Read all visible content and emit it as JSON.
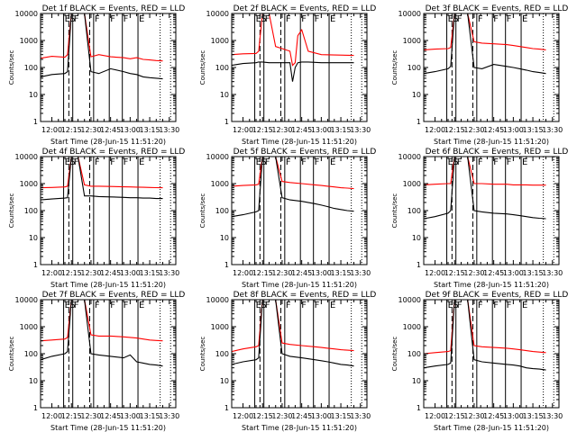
{
  "chart_data": [
    {
      "type": "line",
      "title": "Det 1f BLACK = Events, RED = LLD",
      "xlabel": "Start Time (28-Jun-15 11:51:20)",
      "ylabel": "Counts/sec",
      "ylim": [
        1,
        10000
      ],
      "y_scale": "log",
      "x_ticks": [
        "12:00",
        "12:15",
        "12:30",
        "12:45",
        "13:00",
        "13:15",
        "13:30"
      ],
      "y_ticks": [
        "1",
        "10",
        "100",
        "1000",
        "10000"
      ],
      "x": [
        "11:51:20",
        "12:00",
        "12:10",
        "12:12",
        "12:15",
        "12:20",
        "12:25",
        "12:30",
        "12:36",
        "12:45",
        "12:55",
        "13:00",
        "13:05",
        "13:10",
        "13:15",
        "13:20",
        "13:25"
      ],
      "series": [
        {
          "color": "#ff0000",
          "values": [
            220,
            260,
            240,
            300,
            10000,
            10000,
            10000,
            250,
            300,
            250,
            230,
            210,
            230,
            200,
            190,
            180,
            175
          ]
        },
        {
          "color": "#000000",
          "values": [
            45,
            55,
            60,
            70,
            10000,
            10000,
            10000,
            70,
            60,
            90,
            70,
            60,
            55,
            45,
            42,
            40,
            38
          ]
        }
      ],
      "markers": {
        "solid": [
          "12:09",
          "12:16",
          "12:32",
          "12:44",
          "12:54",
          "13:06"
        ],
        "dashed": [
          "12:13",
          "12:29"
        ],
        "dotted": [
          "13:23",
          "13:31"
        ]
      },
      "labels": [
        "E",
        "F",
        "S",
        "F",
        "F",
        "F",
        "E"
      ]
    },
    {
      "type": "line",
      "title": "Det 2f BLACK = Events, RED = LLD",
      "xlabel": "Start Time (28-Jun-15 11:51:20)",
      "ylabel": "Counts/sec",
      "ylim": [
        1,
        10000
      ],
      "y_scale": "log",
      "x_ticks": [
        "12:00",
        "12:15",
        "12:30",
        "12:45",
        "13:00",
        "13:15",
        "13:30"
      ],
      "y_ticks": [
        "1",
        "10",
        "100",
        "1000",
        "10000"
      ],
      "x": [
        "11:51:20",
        "12:00",
        "12:10",
        "12:12",
        "12:15",
        "12:20",
        "12:25",
        "12:30",
        "12:36",
        "12:38",
        "12:40",
        "12:42",
        "12:45",
        "12:50",
        "13:00",
        "13:10",
        "13:25"
      ],
      "series": [
        {
          "color": "#ff0000",
          "values": [
            300,
            320,
            330,
            400,
            10000,
            10000,
            600,
            500,
            400,
            120,
            150,
            1500,
            2500,
            400,
            300,
            290,
            280
          ]
        },
        {
          "color": "#000000",
          "values": [
            120,
            140,
            150,
            160,
            160,
            150,
            150,
            150,
            150,
            30,
            100,
            150,
            160,
            160,
            150,
            150,
            150
          ]
        }
      ],
      "markers": {
        "solid": [
          "12:09",
          "12:16",
          "12:32",
          "12:44",
          "12:54",
          "13:06"
        ],
        "dashed": [
          "12:13",
          "12:29"
        ],
        "dotted": [
          "13:23",
          "13:31"
        ]
      },
      "labels": [
        "E",
        "F",
        "S",
        "F",
        "F",
        "F",
        "E"
      ]
    },
    {
      "type": "line",
      "title": "Det 3f BLACK = Events, RED = LLD",
      "xlabel": "Start Time (28-Jun-15 11:51:20)",
      "ylabel": "Counts/sec",
      "ylim": [
        1,
        10000
      ],
      "y_scale": "log",
      "x_ticks": [
        "12:00",
        "12:15",
        "12:30",
        "12:45",
        "13:00",
        "13:15",
        "13:30"
      ],
      "y_ticks": [
        "1",
        "10",
        "100",
        "1000",
        "10000"
      ],
      "x": [
        "11:51:20",
        "12:00",
        "12:10",
        "12:12",
        "12:15",
        "12:20",
        "12:25",
        "12:30",
        "12:36",
        "12:45",
        "12:55",
        "13:00",
        "13:05",
        "13:10",
        "13:15",
        "13:20",
        "13:25"
      ],
      "series": [
        {
          "color": "#ff0000",
          "values": [
            450,
            480,
            500,
            550,
            10000,
            10000,
            10000,
            900,
            800,
            750,
            700,
            650,
            600,
            550,
            500,
            480,
            450
          ]
        },
        {
          "color": "#000000",
          "values": [
            60,
            70,
            90,
            110,
            10000,
            10000,
            10000,
            100,
            90,
            130,
            110,
            100,
            90,
            80,
            70,
            65,
            60
          ]
        }
      ],
      "markers": {
        "solid": [
          "12:09",
          "12:16",
          "12:32",
          "12:44",
          "12:54",
          "13:06"
        ],
        "dashed": [
          "12:13",
          "12:29"
        ],
        "dotted": [
          "13:23",
          "13:31"
        ]
      },
      "labels": [
        "E",
        "F",
        "S",
        "F",
        "F",
        "F",
        "E"
      ]
    },
    {
      "type": "line",
      "title": "Det 4f BLACK = Events, RED = LLD",
      "xlabel": "Start Time (28-Jun-15 11:51:20)",
      "ylabel": "Counts/sec",
      "ylim": [
        1,
        10000
      ],
      "y_scale": "log",
      "x_ticks": [
        "12:00",
        "12:15",
        "12:30",
        "12:45",
        "13:00",
        "13:15",
        "13:30"
      ],
      "y_ticks": [
        "1",
        "10",
        "100",
        "1000",
        "10000"
      ],
      "x": [
        "11:51:20",
        "12:00",
        "12:10",
        "12:12",
        "12:15",
        "12:20",
        "12:25",
        "12:30",
        "12:36",
        "12:45",
        "12:55",
        "13:00",
        "13:05",
        "13:10",
        "13:15",
        "13:20",
        "13:25"
      ],
      "series": [
        {
          "color": "#ff0000",
          "values": [
            700,
            720,
            750,
            800,
            10000,
            10000,
            900,
            800,
            800,
            780,
            760,
            750,
            740,
            730,
            720,
            710,
            700
          ]
        },
        {
          "color": "#000000",
          "values": [
            250,
            270,
            290,
            300,
            10000,
            10000,
            350,
            350,
            330,
            320,
            310,
            300,
            300,
            290,
            290,
            280,
            280
          ]
        }
      ],
      "markers": {
        "solid": [
          "12:09",
          "12:16",
          "12:32",
          "12:44",
          "12:54",
          "13:06"
        ],
        "dashed": [
          "12:13",
          "12:29"
        ],
        "dotted": [
          "13:23",
          "13:31"
        ]
      },
      "labels": [
        "E",
        "F",
        "S",
        "F",
        "F",
        "F",
        "E"
      ]
    },
    {
      "type": "line",
      "title": "Det 5f BLACK = Events, RED = LLD",
      "xlabel": "Start Time (28-Jun-15 11:51:20)",
      "ylabel": "Counts/sec",
      "ylim": [
        1,
        10000
      ],
      "y_scale": "log",
      "x_ticks": [
        "12:00",
        "12:15",
        "12:30",
        "12:45",
        "13:00",
        "13:15",
        "13:30"
      ],
      "y_ticks": [
        "1",
        "10",
        "100",
        "1000",
        "10000"
      ],
      "x": [
        "11:51:20",
        "12:00",
        "12:10",
        "12:12",
        "12:15",
        "12:20",
        "12:25",
        "12:30",
        "12:36",
        "12:45",
        "12:55",
        "13:00",
        "13:05",
        "13:10",
        "13:15",
        "13:20",
        "13:25"
      ],
      "series": [
        {
          "color": "#ff0000",
          "values": [
            800,
            850,
            900,
            950,
            10000,
            10000,
            10000,
            1200,
            1100,
            1000,
            900,
            850,
            800,
            750,
            700,
            680,
            650
          ]
        },
        {
          "color": "#000000",
          "values": [
            60,
            70,
            90,
            100,
            10000,
            10000,
            10000,
            300,
            250,
            220,
            180,
            160,
            140,
            120,
            110,
            100,
            95
          ]
        }
      ],
      "markers": {
        "solid": [
          "12:09",
          "12:16",
          "12:32",
          "12:44",
          "12:54",
          "13:06"
        ],
        "dashed": [
          "12:13",
          "12:29"
        ],
        "dotted": [
          "13:23",
          "13:31"
        ]
      },
      "labels": [
        "E",
        "F",
        "S",
        "F",
        "F",
        "F",
        "E"
      ]
    },
    {
      "type": "line",
      "title": "Det 6f BLACK = Events, RED = LLD",
      "xlabel": "Start Time (28-Jun-15 11:51:20)",
      "ylabel": "Counts/sec",
      "ylim": [
        1,
        10000
      ],
      "y_scale": "log",
      "x_ticks": [
        "12:00",
        "12:15",
        "12:30",
        "12:45",
        "13:00",
        "13:15",
        "13:30"
      ],
      "y_ticks": [
        "1",
        "10",
        "100",
        "1000",
        "10000"
      ],
      "x": [
        "11:51:20",
        "12:00",
        "12:10",
        "12:12",
        "12:15",
        "12:20",
        "12:25",
        "12:30",
        "12:36",
        "12:45",
        "12:55",
        "13:00",
        "13:05",
        "13:10",
        "13:15",
        "13:20",
        "13:25"
      ],
      "series": [
        {
          "color": "#ff0000",
          "values": [
            900,
            950,
            1000,
            1000,
            10000,
            10000,
            10000,
            1000,
            1000,
            950,
            950,
            900,
            900,
            900,
            880,
            880,
            880
          ]
        },
        {
          "color": "#000000",
          "values": [
            50,
            60,
            80,
            100,
            10000,
            10000,
            10000,
            100,
            90,
            80,
            75,
            70,
            65,
            60,
            55,
            52,
            50
          ]
        }
      ],
      "markers": {
        "solid": [
          "12:09",
          "12:16",
          "12:32",
          "12:44",
          "12:54",
          "13:06"
        ],
        "dashed": [
          "12:13",
          "12:29"
        ],
        "dotted": [
          "13:23",
          "13:31"
        ]
      },
      "labels": [
        "E",
        "F",
        "S",
        "F",
        "F",
        "F",
        "E"
      ]
    },
    {
      "type": "line",
      "title": "Det 7f BLACK = Events, RED = LLD",
      "xlabel": "Start Time (28-Jun-15 11:51:20)",
      "ylabel": "Counts/sec",
      "ylim": [
        1,
        10000
      ],
      "y_scale": "log",
      "x_ticks": [
        "12:00",
        "12:15",
        "12:30",
        "12:45",
        "13:00",
        "13:15",
        "13:30"
      ],
      "y_ticks": [
        "1",
        "10",
        "100",
        "1000",
        "10000"
      ],
      "x": [
        "11:51:20",
        "12:00",
        "12:10",
        "12:12",
        "12:15",
        "12:20",
        "12:25",
        "12:30",
        "12:36",
        "12:45",
        "12:55",
        "13:00",
        "13:05",
        "13:10",
        "13:15",
        "13:20",
        "13:25"
      ],
      "series": [
        {
          "color": "#ff0000",
          "values": [
            300,
            320,
            350,
            400,
            10000,
            10000,
            10000,
            500,
            450,
            450,
            420,
            400,
            380,
            350,
            320,
            310,
            300
          ]
        },
        {
          "color": "#000000",
          "values": [
            60,
            80,
            100,
            120,
            10000,
            10000,
            10000,
            100,
            90,
            80,
            70,
            90,
            50,
            45,
            40,
            38,
            35
          ]
        }
      ],
      "markers": {
        "solid": [
          "12:09",
          "12:16",
          "12:32",
          "12:44",
          "12:54",
          "13:06"
        ],
        "dashed": [
          "12:13",
          "12:29"
        ],
        "dotted": [
          "13:23",
          "13:31"
        ]
      },
      "labels": [
        "E",
        "F",
        "S",
        "F",
        "F",
        "F",
        "E"
      ]
    },
    {
      "type": "line",
      "title": "Det 8f BLACK = Events, RED = LLD",
      "xlabel": "Start Time (28-Jun-15 11:51:20)",
      "ylabel": "Counts/sec",
      "ylim": [
        1,
        10000
      ],
      "y_scale": "log",
      "x_ticks": [
        "12:00",
        "12:15",
        "12:30",
        "12:45",
        "13:00",
        "13:15",
        "13:30"
      ],
      "y_ticks": [
        "1",
        "10",
        "100",
        "1000",
        "10000"
      ],
      "x": [
        "11:51:20",
        "12:00",
        "12:10",
        "12:12",
        "12:15",
        "12:20",
        "12:25",
        "12:30",
        "12:36",
        "12:45",
        "12:55",
        "13:00",
        "13:05",
        "13:10",
        "13:15",
        "13:20",
        "13:25"
      ],
      "series": [
        {
          "color": "#ff0000",
          "values": [
            120,
            150,
            180,
            200,
            10000,
            10000,
            10000,
            250,
            220,
            200,
            180,
            170,
            160,
            150,
            140,
            135,
            130
          ]
        },
        {
          "color": "#000000",
          "values": [
            40,
            50,
            60,
            70,
            10000,
            10000,
            10000,
            100,
            80,
            70,
            60,
            55,
            50,
            45,
            40,
            38,
            35
          ]
        }
      ],
      "markers": {
        "solid": [
          "12:09",
          "12:16",
          "12:32",
          "12:44",
          "12:54",
          "13:06"
        ],
        "dashed": [
          "12:13",
          "12:29"
        ],
        "dotted": [
          "13:23",
          "13:31"
        ]
      },
      "labels": [
        "E",
        "F",
        "S",
        "F",
        "F",
        "F",
        "E"
      ]
    },
    {
      "type": "line",
      "title": "Det 9f BLACK = Events, RED = LLD",
      "xlabel": "Start Time (28-Jun-15 11:51:20)",
      "ylabel": "Counts/sec",
      "ylim": [
        1,
        10000
      ],
      "y_scale": "log",
      "x_ticks": [
        "12:00",
        "12:15",
        "12:30",
        "12:45",
        "13:00",
        "13:15",
        "13:30"
      ],
      "y_ticks": [
        "1",
        "10",
        "100",
        "1000",
        "10000"
      ],
      "x": [
        "11:51:20",
        "12:00",
        "12:10",
        "12:12",
        "12:15",
        "12:20",
        "12:25",
        "12:30",
        "12:36",
        "12:45",
        "12:55",
        "13:00",
        "13:05",
        "13:10",
        "13:15",
        "13:20",
        "13:25"
      ],
      "series": [
        {
          "color": "#ff0000",
          "values": [
            100,
            110,
            120,
            130,
            10000,
            10000,
            10000,
            200,
            180,
            170,
            160,
            150,
            140,
            130,
            120,
            115,
            110
          ]
        },
        {
          "color": "#000000",
          "values": [
            30,
            35,
            40,
            45,
            10000,
            10000,
            10000,
            60,
            50,
            45,
            40,
            38,
            35,
            30,
            28,
            27,
            25
          ]
        }
      ],
      "markers": {
        "solid": [
          "12:09",
          "12:16",
          "12:32",
          "12:44",
          "12:54",
          "13:06"
        ],
        "dashed": [
          "12:13",
          "12:29"
        ],
        "dotted": [
          "13:23",
          "13:31"
        ]
      },
      "labels": [
        "E",
        "F",
        "S",
        "F",
        "F",
        "F",
        "E"
      ]
    }
  ]
}
